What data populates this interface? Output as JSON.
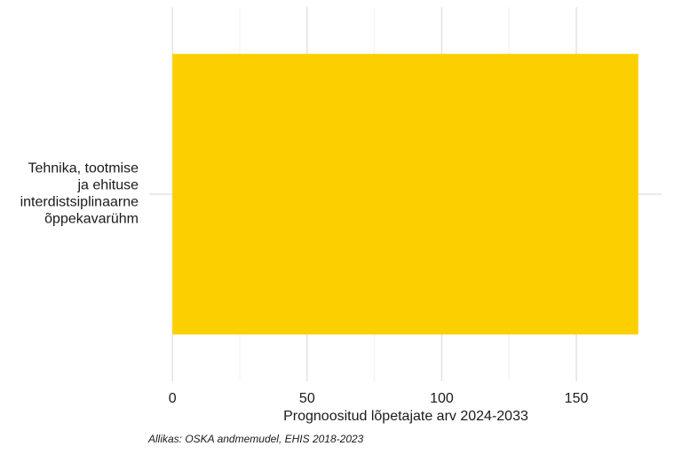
{
  "chart_data": {
    "type": "barh",
    "categories": [
      "Tehnika, tootmise\nja ehituse\ninterdistsiplinaarne\nõppekavarühm"
    ],
    "values": [
      173
    ],
    "color": "#fcd000",
    "xlabel": "Prognoositud lõpetajate arv 2024-2033",
    "caption": "Allikas: OSKA andmemudel, EHIS 2018-2023",
    "xlim": [
      -8.65,
      181.65
    ],
    "xticks": [
      0,
      50,
      100,
      150
    ],
    "minor_xticks": [
      25,
      75,
      125
    ],
    "grid": true
  }
}
